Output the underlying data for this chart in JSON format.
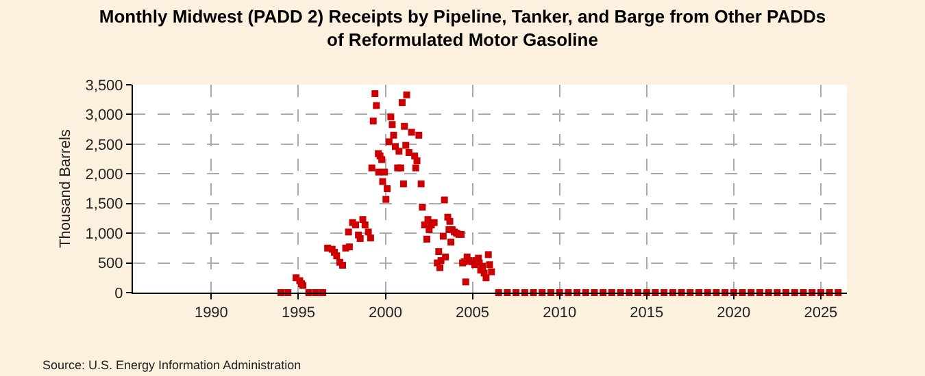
{
  "chart_data": {
    "type": "scatter",
    "title": "Monthly Midwest (PADD 2) Receipts by Pipeline, Tanker, and Barge from Other PADDs of Reformulated Motor Gasoline",
    "ylabel": "Thousand Barrels",
    "annotations": [
      "Source: U.S. Energy Information Administration"
    ],
    "x": [
      1994.0,
      1994.4,
      1994.87,
      1995.08,
      1995.18,
      1995.26,
      1995.6,
      1996.0,
      1996.4,
      1996.68,
      1996.94,
      1997.07,
      1997.2,
      1997.38,
      1997.54,
      1997.72,
      1997.88,
      1997.93,
      1998.11,
      1998.29,
      1998.45,
      1998.55,
      1998.7,
      1998.83,
      1999.02,
      1999.15,
      1999.22,
      1999.3,
      1999.4,
      1999.48,
      1999.59,
      1999.61,
      1999.69,
      1999.79,
      1999.84,
      1999.95,
      2000.03,
      2000.1,
      2000.21,
      2000.31,
      2000.39,
      2000.47,
      2000.57,
      2000.7,
      2000.78,
      2000.88,
      2000.96,
      2001.04,
      2001.09,
      2001.17,
      2001.22,
      2001.35,
      2001.5,
      2001.68,
      2001.74,
      2001.81,
      2001.92,
      2002.05,
      2002.12,
      2002.25,
      2002.38,
      2002.44,
      2002.51,
      2002.64,
      2002.8,
      2002.98,
      2003.06,
      2003.13,
      2003.19,
      2003.32,
      2003.39,
      2003.45,
      2003.58,
      2003.65,
      2003.7,
      2003.76,
      2003.83,
      2003.96,
      2004.09,
      2004.22,
      2004.35,
      2004.43,
      2004.53,
      2004.61,
      2004.69,
      2004.79,
      2004.95,
      2005.13,
      2005.21,
      2005.34,
      2005.39,
      2005.47,
      2005.57,
      2005.67,
      2005.78,
      2005.91,
      2005.98,
      2006.09,
      2006.5,
      2007.0,
      2007.5,
      2008.0,
      2008.5,
      2009.0,
      2009.5,
      2010.0,
      2010.5,
      2011.0,
      2011.5,
      2012.0,
      2012.5,
      2013.0,
      2013.5,
      2014.0,
      2014.5,
      2015.0,
      2015.5,
      2016.0,
      2016.5,
      2017.0,
      2017.5,
      2018.0,
      2018.5,
      2019.0,
      2019.5,
      2020.0,
      2020.5,
      2021.0,
      2021.5,
      2022.0,
      2022.5,
      2023.0,
      2023.5,
      2024.0,
      2024.5,
      2025.0,
      2025.5,
      2026.0
    ],
    "values": [
      0,
      0,
      250,
      200,
      150,
      120,
      0,
      0,
      0,
      750,
      730,
      680,
      620,
      510,
      460,
      750,
      1020,
      770,
      1180,
      1140,
      970,
      910,
      1230,
      1140,
      1020,
      920,
      2100,
      2890,
      3350,
      3150,
      2340,
      2030,
      2300,
      2240,
      1870,
      2030,
      1570,
      1750,
      2540,
      2960,
      2830,
      2650,
      2460,
      2100,
      2380,
      2100,
      3200,
      1830,
      2800,
      2480,
      3330,
      2360,
      2700,
      2300,
      2100,
      2220,
      2650,
      1830,
      1440,
      1140,
      900,
      1230,
      1060,
      1140,
      1180,
      500,
      690,
      420,
      540,
      950,
      1560,
      600,
      1270,
      1060,
      1200,
      850,
      1060,
      1020,
      1000,
      980,
      980,
      500,
      520,
      180,
      600,
      540,
      520,
      470,
      540,
      580,
      500,
      380,
      440,
      330,
      250,
      640,
      470,
      350,
      0,
      0,
      0,
      0,
      0,
      0,
      0,
      0,
      0,
      0,
      0,
      0,
      0,
      0,
      0,
      0,
      0,
      0,
      0,
      0,
      0,
      0,
      0,
      0,
      0,
      0,
      0,
      0,
      0,
      0,
      0,
      0,
      0,
      0,
      0,
      0,
      0,
      0,
      0,
      0
    ],
    "color": "#cc0000",
    "marker": "square",
    "xlim": [
      1985.5,
      2026.5
    ],
    "xticks": [
      1990,
      1995,
      2000,
      2005,
      2010,
      2015,
      2020,
      2025
    ],
    "ylim": [
      0,
      3500
    ],
    "yticks": [
      {
        "value": 0,
        "label": "0"
      },
      {
        "value": 500,
        "label": "500"
      },
      {
        "value": 1000,
        "label": "1,000"
      },
      {
        "value": 1500,
        "label": "1,500"
      },
      {
        "value": 2000,
        "label": "2,000"
      },
      {
        "value": 2500,
        "label": "2,500"
      },
      {
        "value": 3000,
        "label": "3,000"
      },
      {
        "value": 3500,
        "label": "3,500"
      }
    ],
    "grid": true
  }
}
